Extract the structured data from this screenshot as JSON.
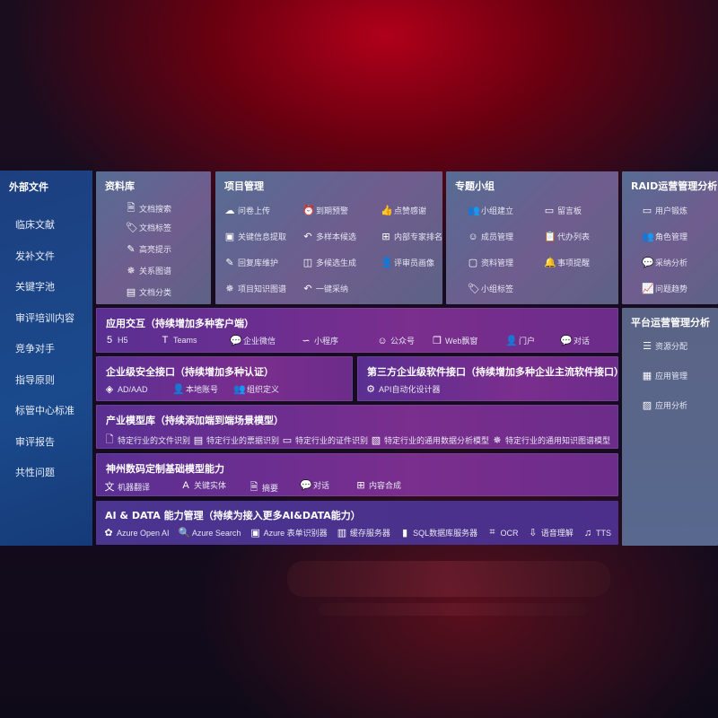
{
  "sidebar": {
    "title": "外部文件",
    "items": [
      "临床文献",
      "发补文件",
      "关键字池",
      "审评培训内容",
      "竞争对手",
      "指导原则",
      "标管中心标准",
      "审评报告",
      "共性问题"
    ]
  },
  "library": {
    "title": "资料库",
    "items": [
      {
        "icon": "doc-search",
        "label": "文档搜索"
      },
      {
        "icon": "tag",
        "label": "文档标签"
      },
      {
        "icon": "highlight-pen",
        "label": "高亮提示"
      },
      {
        "icon": "relation-graph",
        "label": "关系图谱"
      },
      {
        "icon": "doc-category",
        "label": "文档分类"
      }
    ]
  },
  "project": {
    "title": "项目管理",
    "items": [
      {
        "icon": "cloud-upload",
        "label": "问卷上传"
      },
      {
        "icon": "alarm",
        "label": "到期预警"
      },
      {
        "icon": "thumbs-up",
        "label": "点赞感谢"
      },
      {
        "icon": "key-info",
        "label": "关键信息提取"
      },
      {
        "icon": "reply",
        "label": "多样本候选"
      },
      {
        "icon": "ranking",
        "label": "内部专家排名"
      },
      {
        "icon": "edit",
        "label": "回复库维护"
      },
      {
        "icon": "puzzle",
        "label": "多候选生成"
      },
      {
        "icon": "user",
        "label": "评审员画像"
      },
      {
        "icon": "knowledge-graph",
        "label": "项目知识图谱"
      },
      {
        "icon": "reply",
        "label": "一键采纳"
      }
    ]
  },
  "group": {
    "title": "专题小组",
    "items": [
      {
        "icon": "users",
        "label": "小组建立"
      },
      {
        "icon": "bbs",
        "label": "留言板"
      },
      {
        "icon": "user-add",
        "label": "成员管理"
      },
      {
        "icon": "clipboard",
        "label": "代办列表"
      },
      {
        "icon": "folder",
        "label": "资料管理"
      },
      {
        "icon": "bell",
        "label": "事项提醒"
      },
      {
        "icon": "tag",
        "label": "小组标签"
      }
    ]
  },
  "raid": {
    "title": "RAID运营管理分析",
    "items": [
      {
        "icon": "id-card",
        "label": "用户锻炼"
      },
      {
        "icon": "users",
        "label": "角色管理"
      },
      {
        "icon": "qa",
        "label": "采纳分析"
      },
      {
        "icon": "trend",
        "label": "问题趋势"
      }
    ]
  },
  "platform": {
    "title": "平台运营管理分析",
    "items": [
      {
        "icon": "checklist",
        "label": "资源分配"
      },
      {
        "icon": "apps",
        "label": "应用管理"
      },
      {
        "icon": "analytics",
        "label": "应用分析"
      }
    ]
  },
  "app": {
    "title": "应用交互（持续增加多种客户端）",
    "items": [
      {
        "icon": "html5",
        "label": "H5"
      },
      {
        "icon": "teams",
        "label": "Teams"
      },
      {
        "icon": "wechat-work",
        "label": "企业微信"
      },
      {
        "icon": "mini-program",
        "label": "小程序"
      },
      {
        "icon": "official-account",
        "label": "公众号"
      },
      {
        "icon": "web-window",
        "label": "Web飘窗"
      },
      {
        "icon": "portal",
        "label": "门户"
      },
      {
        "icon": "chat",
        "label": "对话"
      }
    ]
  },
  "security": {
    "title": "企业级安全接口（持续增加多种认证）",
    "items": [
      {
        "icon": "ad",
        "label": "AD/AAD"
      },
      {
        "icon": "local-account",
        "label": "本地账号"
      },
      {
        "icon": "org",
        "label": "组织定义"
      }
    ]
  },
  "thirdparty": {
    "title": "第三方企业级软件接口（持续增加多种企业主流软件接口）",
    "items": [
      {
        "icon": "api-gear",
        "label": "API自动化设计器"
      }
    ]
  },
  "industry": {
    "title": "产业模型库（持续添加端到端场景模型）",
    "items": [
      {
        "icon": "file",
        "label": "特定行业的文件识别"
      },
      {
        "icon": "receipt",
        "label": "特定行业的票据识别"
      },
      {
        "icon": "id-card",
        "label": "特定行业的证件识别"
      },
      {
        "icon": "chart",
        "label": "特定行业的通用数据分析模型"
      },
      {
        "icon": "knowledge-graph",
        "label": "特定行业的通用知识图谱模型"
      }
    ]
  },
  "base": {
    "title": "神州数码定制基础模型能力",
    "items": [
      {
        "icon": "translate",
        "label": "机器翻译"
      },
      {
        "icon": "entity",
        "label": "关键实体"
      },
      {
        "icon": "summary",
        "label": "摘要"
      },
      {
        "icon": "chat",
        "label": "对话"
      },
      {
        "icon": "compose",
        "label": "内容合成"
      }
    ]
  },
  "aidata": {
    "title": "AI & DATA 能力管理（持续为接入更多AI&DATA能力）",
    "items": [
      {
        "icon": "openai",
        "label": "Azure Open AI"
      },
      {
        "icon": "search",
        "label": "Azure Search"
      },
      {
        "icon": "form-recognizer",
        "label": "Azure 表单识别器"
      },
      {
        "icon": "cache",
        "label": "缓存服务器"
      },
      {
        "icon": "sql",
        "label": "SQL数据库服务器"
      },
      {
        "icon": "ocr",
        "label": "OCR"
      },
      {
        "icon": "speech",
        "label": "语音理解"
      },
      {
        "icon": "tts",
        "label": "TTS"
      }
    ]
  }
}
